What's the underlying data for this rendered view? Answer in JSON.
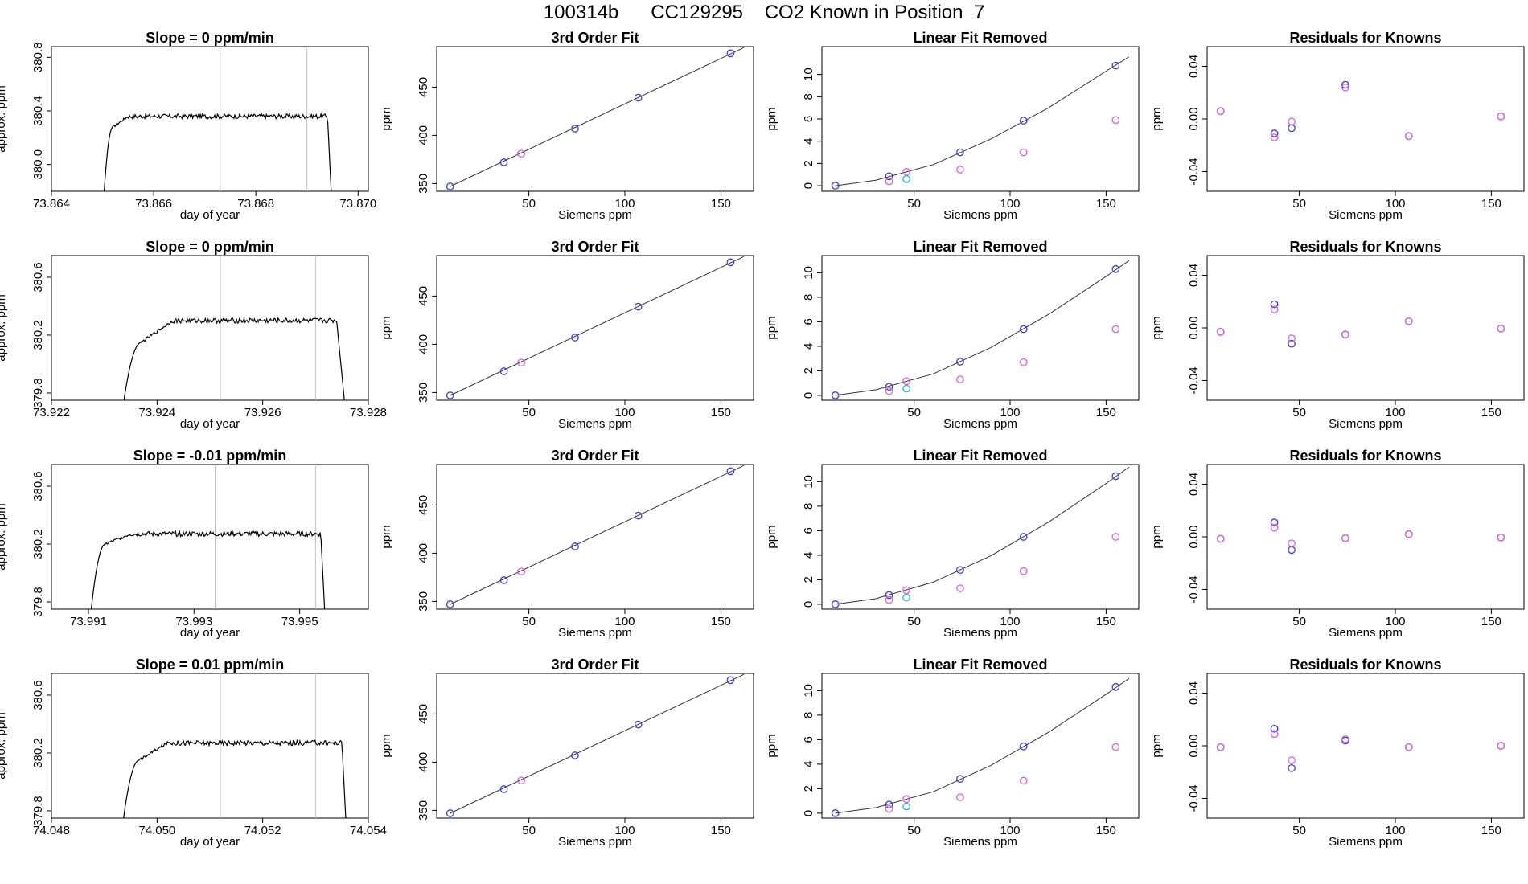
{
  "title": "100314b      CC129295    CO2 Known in Position  7",
  "colors": {
    "line": "#000000",
    "vline": "#bebebe",
    "blue": "#3a3ae6",
    "magenta": "#e05ce0",
    "cyan": "#20b8e8",
    "purple": "#8a3ae6"
  },
  "common": {
    "fit_title": "3rd Order Fit",
    "lin_title": "Linear Fit Removed",
    "res_title": "Residuals for Knowns",
    "x_siemens": "Siemens ppm",
    "y_ppm": "ppm",
    "x_day": "day of year",
    "y_approx": "approx. ppm"
  },
  "chart_data": [
    {
      "type": "line",
      "title": "Slope =  0  ppm/min",
      "xlabel": "day of year",
      "ylabel": "approx. ppm",
      "xlim": [
        73.864,
        73.8702
      ],
      "ylim": [
        379.8,
        380.88
      ],
      "xticks": [
        "73.864",
        "73.866",
        "73.868",
        "73.870"
      ],
      "yticks": [
        "380.0",
        "380.4",
        "380.8"
      ],
      "rise_start": 73.865,
      "plateau_start": 73.8655,
      "plateau_end": 73.8694,
      "drop_end": 73.8695,
      "plateau_level": 380.36,
      "shoulder_level": 380.28,
      "vlines": [
        73.8673,
        73.869
      ]
    },
    {
      "type": "scatter",
      "title": "3rd Order Fit",
      "xlabel": "Siemens ppm",
      "ylabel": "ppm",
      "xlim": [
        2,
        167
      ],
      "ylim": [
        342,
        492
      ],
      "xticks": [
        50,
        100,
        150
      ],
      "yticks": [
        350,
        400,
        450
      ],
      "series": [
        {
          "color": "blue",
          "x": [
            9,
            37,
            74,
            107,
            155
          ],
          "y": [
            347,
            372,
            407,
            439,
            485
          ]
        },
        {
          "color": "magenta",
          "x": [
            46
          ],
          "y": [
            381
          ]
        }
      ],
      "fit_line": {
        "x": [
          9,
          162
        ],
        "y": [
          347,
          491
        ]
      }
    },
    {
      "type": "scatter",
      "title": "Linear Fit Removed",
      "xlabel": "Siemens ppm",
      "ylabel": "ppm",
      "xlim": [
        2,
        167
      ],
      "ylim": [
        -0.5,
        12.5
      ],
      "xticks": [
        50,
        100,
        150
      ],
      "yticks": [
        0,
        2,
        4,
        6,
        8,
        10
      ],
      "series": [
        {
          "color": "blue",
          "x": [
            9,
            37,
            74,
            107,
            155
          ],
          "y": [
            0,
            0.85,
            3.0,
            5.85,
            10.8
          ]
        },
        {
          "color": "magenta",
          "x": [
            37,
            46,
            74,
            107,
            155
          ],
          "y": [
            0.4,
            1.25,
            1.45,
            3.0,
            5.9
          ]
        },
        {
          "color": "cyan",
          "x": [
            46
          ],
          "y": [
            0.6
          ]
        }
      ],
      "curve": {
        "x": [
          9,
          30,
          60,
          90,
          120,
          150,
          162
        ],
        "y": [
          0,
          0.5,
          1.9,
          4.2,
          7.0,
          10.3,
          11.6
        ]
      }
    },
    {
      "type": "scatter",
      "title": "Residuals for Knowns",
      "xlabel": "Siemens ppm",
      "ylabel": "ppm",
      "xlim": [
        2,
        167
      ],
      "ylim": [
        -0.055,
        0.055
      ],
      "xticks": [
        50,
        100,
        150
      ],
      "yticks": [
        "-0.04",
        "0.00",
        "0.04"
      ],
      "series": [
        {
          "color": "blue",
          "x": [
            9,
            37,
            46,
            74,
            107,
            155
          ],
          "y": [
            0.006,
            -0.011,
            -0.007,
            0.026,
            -0.013,
            0.002
          ]
        },
        {
          "color": "magenta",
          "x": [
            9,
            37,
            46,
            74,
            107,
            155
          ],
          "y": [
            0.006,
            -0.014,
            -0.002,
            0.024,
            -0.013,
            0.002
          ]
        }
      ]
    },
    {
      "type": "line",
      "title": "Slope =  0  ppm/min",
      "xlabel": "day of year",
      "ylabel": "approx. ppm",
      "xlim": [
        73.922,
        73.928
      ],
      "ylim": [
        379.75,
        380.75
      ],
      "xticks": [
        "73.922",
        "73.924",
        "73.926",
        "73.928"
      ],
      "yticks": [
        "379.8",
        "380.2",
        "380.6"
      ],
      "rise_start": 73.9233,
      "plateau_start": 73.9243,
      "plateau_end": 73.9274,
      "drop_end": 73.9276,
      "plateau_level": 380.3,
      "shoulder_level": 380.15,
      "vlines": [
        73.9252,
        73.927
      ]
    },
    {
      "type": "scatter",
      "title": "3rd Order Fit",
      "xlabel": "Siemens ppm",
      "ylabel": "ppm",
      "xlim": [
        2,
        167
      ],
      "ylim": [
        342,
        492
      ],
      "xticks": [
        50,
        100,
        150
      ],
      "yticks": [
        350,
        400,
        450
      ],
      "series": [
        {
          "color": "blue",
          "x": [
            9,
            37,
            74,
            107,
            155
          ],
          "y": [
            347,
            372,
            407,
            439,
            485
          ]
        },
        {
          "color": "magenta",
          "x": [
            46
          ],
          "y": [
            381
          ]
        }
      ],
      "fit_line": {
        "x": [
          9,
          162
        ],
        "y": [
          347,
          491
        ]
      }
    },
    {
      "type": "scatter",
      "title": "Linear Fit Removed",
      "xlabel": "Siemens ppm",
      "ylabel": "ppm",
      "xlim": [
        2,
        167
      ],
      "ylim": [
        -0.4,
        11.4
      ],
      "xticks": [
        50,
        100,
        150
      ],
      "yticks": [
        0,
        2,
        4,
        6,
        8,
        10
      ],
      "series": [
        {
          "color": "blue",
          "x": [
            9,
            37,
            74,
            107,
            155
          ],
          "y": [
            0,
            0.7,
            2.75,
            5.4,
            10.3
          ]
        },
        {
          "color": "magenta",
          "x": [
            37,
            46,
            74,
            107,
            155
          ],
          "y": [
            0.35,
            1.15,
            1.3,
            2.7,
            5.4
          ]
        },
        {
          "color": "cyan",
          "x": [
            46
          ],
          "y": [
            0.55
          ]
        }
      ],
      "curve": {
        "x": [
          9,
          30,
          60,
          90,
          120,
          150,
          162
        ],
        "y": [
          0,
          0.45,
          1.75,
          3.9,
          6.6,
          9.7,
          11.0
        ]
      }
    },
    {
      "type": "scatter",
      "title": "Residuals for Knowns",
      "xlabel": "Siemens ppm",
      "ylabel": "ppm",
      "xlim": [
        2,
        167
      ],
      "ylim": [
        -0.055,
        0.055
      ],
      "xticks": [
        50,
        100,
        150
      ],
      "yticks": [
        "-0.04",
        "0.00",
        "0.04"
      ],
      "series": [
        {
          "color": "blue",
          "x": [
            9,
            37,
            46,
            74,
            107,
            155
          ],
          "y": [
            -0.003,
            0.018,
            -0.012,
            -0.005,
            0.005,
            -0.0005
          ]
        },
        {
          "color": "magenta",
          "x": [
            9,
            37,
            46,
            74,
            107,
            155
          ],
          "y": [
            -0.003,
            0.014,
            -0.008,
            -0.005,
            0.005,
            -0.0005
          ]
        }
      ]
    },
    {
      "type": "line",
      "title": "Slope =  -0.01  ppm/min",
      "xlabel": "day of year",
      "ylabel": "approx. ppm",
      "xlim": [
        73.9903,
        73.9963
      ],
      "ylim": [
        379.75,
        380.75
      ],
      "xticks": [
        "73.991",
        "73.993",
        "73.995"
      ],
      "yticks": [
        "379.8",
        "380.2",
        "380.6"
      ],
      "rise_start": 73.991,
      "plateau_start": 73.9918,
      "plateau_end": 73.9954,
      "drop_end": 73.9955,
      "plateau_level": 380.27,
      "shoulder_level": 380.2,
      "vlines": [
        73.9934,
        73.9953
      ]
    },
    {
      "type": "scatter",
      "title": "3rd Order Fit",
      "xlabel": "Siemens ppm",
      "ylabel": "ppm",
      "xlim": [
        2,
        167
      ],
      "ylim": [
        342,
        492
      ],
      "xticks": [
        50,
        100,
        150
      ],
      "yticks": [
        350,
        400,
        450
      ],
      "series": [
        {
          "color": "blue",
          "x": [
            9,
            37,
            74,
            107,
            155
          ],
          "y": [
            347,
            372,
            407,
            439,
            485
          ]
        },
        {
          "color": "magenta",
          "x": [
            46
          ],
          "y": [
            381
          ]
        }
      ],
      "fit_line": {
        "x": [
          9,
          162
        ],
        "y": [
          347,
          491
        ]
      }
    },
    {
      "type": "scatter",
      "title": "Linear Fit Removed",
      "xlabel": "Siemens ppm",
      "ylabel": "ppm",
      "xlim": [
        2,
        167
      ],
      "ylim": [
        -0.4,
        11.4
      ],
      "xticks": [
        50,
        100,
        150
      ],
      "yticks": [
        0,
        2,
        4,
        6,
        8,
        10
      ],
      "series": [
        {
          "color": "blue",
          "x": [
            9,
            37,
            74,
            107,
            155
          ],
          "y": [
            0,
            0.75,
            2.8,
            5.5,
            10.45
          ]
        },
        {
          "color": "magenta",
          "x": [
            37,
            46,
            74,
            107,
            155
          ],
          "y": [
            0.35,
            1.15,
            1.3,
            2.7,
            5.5
          ]
        },
        {
          "color": "cyan",
          "x": [
            46
          ],
          "y": [
            0.55
          ]
        }
      ],
      "curve": {
        "x": [
          9,
          30,
          60,
          90,
          120,
          150,
          162
        ],
        "y": [
          0,
          0.45,
          1.8,
          3.95,
          6.7,
          9.85,
          11.2
        ]
      }
    },
    {
      "type": "scatter",
      "title": "Residuals for Knowns",
      "xlabel": "Siemens ppm",
      "ylabel": "ppm",
      "xlim": [
        2,
        167
      ],
      "ylim": [
        -0.055,
        0.055
      ],
      "xticks": [
        50,
        100,
        150
      ],
      "yticks": [
        "-0.04",
        "0.00",
        "0.04"
      ],
      "series": [
        {
          "color": "blue",
          "x": [
            9,
            37,
            46,
            74,
            107,
            155
          ],
          "y": [
            -0.0015,
            0.011,
            -0.01,
            -0.001,
            0.002,
            -0.0005
          ]
        },
        {
          "color": "magenta",
          "x": [
            9,
            37,
            46,
            74,
            107,
            155
          ],
          "y": [
            -0.0015,
            0.007,
            -0.005,
            -0.001,
            0.002,
            -0.0005
          ]
        }
      ]
    },
    {
      "type": "line",
      "title": "Slope =  0.01  ppm/min",
      "xlabel": "day of year",
      "ylabel": "approx. ppm",
      "xlim": [
        74.048,
        74.054
      ],
      "ylim": [
        379.75,
        380.75
      ],
      "xticks": [
        "74.048",
        "74.050",
        "74.052",
        "74.054"
      ],
      "yticks": [
        "379.8",
        "380.2",
        "380.6"
      ],
      "rise_start": 74.0493,
      "plateau_start": 74.0502,
      "plateau_end": 74.0535,
      "drop_end": 74.0536,
      "plateau_level": 380.27,
      "shoulder_level": 380.15,
      "vlines": [
        74.0512,
        74.053
      ]
    },
    {
      "type": "scatter",
      "title": "3rd Order Fit",
      "xlabel": "Siemens ppm",
      "ylabel": "ppm",
      "xlim": [
        2,
        167
      ],
      "ylim": [
        342,
        492
      ],
      "xticks": [
        50,
        100,
        150
      ],
      "yticks": [
        350,
        400,
        450
      ],
      "series": [
        {
          "color": "blue",
          "x": [
            9,
            37,
            74,
            107,
            155
          ],
          "y": [
            347,
            372,
            407,
            439,
            485
          ]
        },
        {
          "color": "magenta",
          "x": [
            46
          ],
          "y": [
            381
          ]
        }
      ],
      "fit_line": {
        "x": [
          9,
          162
        ],
        "y": [
          347,
          491
        ]
      }
    },
    {
      "type": "scatter",
      "title": "Linear Fit Removed",
      "xlabel": "Siemens ppm",
      "ylabel": "ppm",
      "xlim": [
        2,
        167
      ],
      "ylim": [
        -0.4,
        11.4
      ],
      "xticks": [
        50,
        100,
        150
      ],
      "yticks": [
        0,
        2,
        4,
        6,
        8,
        10
      ],
      "series": [
        {
          "color": "blue",
          "x": [
            9,
            37,
            74,
            107,
            155
          ],
          "y": [
            0,
            0.7,
            2.8,
            5.45,
            10.3
          ]
        },
        {
          "color": "magenta",
          "x": [
            37,
            46,
            74,
            107,
            155
          ],
          "y": [
            0.35,
            1.15,
            1.3,
            2.65,
            5.4
          ]
        },
        {
          "color": "cyan",
          "x": [
            46
          ],
          "y": [
            0.55
          ]
        }
      ],
      "curve": {
        "x": [
          9,
          30,
          60,
          90,
          120,
          150,
          162
        ],
        "y": [
          0,
          0.45,
          1.75,
          3.9,
          6.6,
          9.7,
          11.0
        ]
      }
    },
    {
      "type": "scatter",
      "title": "Residuals for Knowns",
      "xlabel": "Siemens ppm",
      "ylabel": "ppm",
      "xlim": [
        2,
        167
      ],
      "ylim": [
        -0.055,
        0.055
      ],
      "xticks": [
        50,
        100,
        150
      ],
      "yticks": [
        "-0.04",
        "0.00",
        "0.04"
      ],
      "series": [
        {
          "color": "blue",
          "x": [
            9,
            37,
            46,
            74,
            107,
            155
          ],
          "y": [
            -0.001,
            0.013,
            -0.017,
            0.004,
            -0.001,
            0.0
          ]
        },
        {
          "color": "magenta",
          "x": [
            9,
            37,
            46,
            74,
            107,
            155
          ],
          "y": [
            -0.001,
            0.009,
            -0.011,
            0.005,
            -0.001,
            0.0
          ]
        }
      ]
    }
  ]
}
